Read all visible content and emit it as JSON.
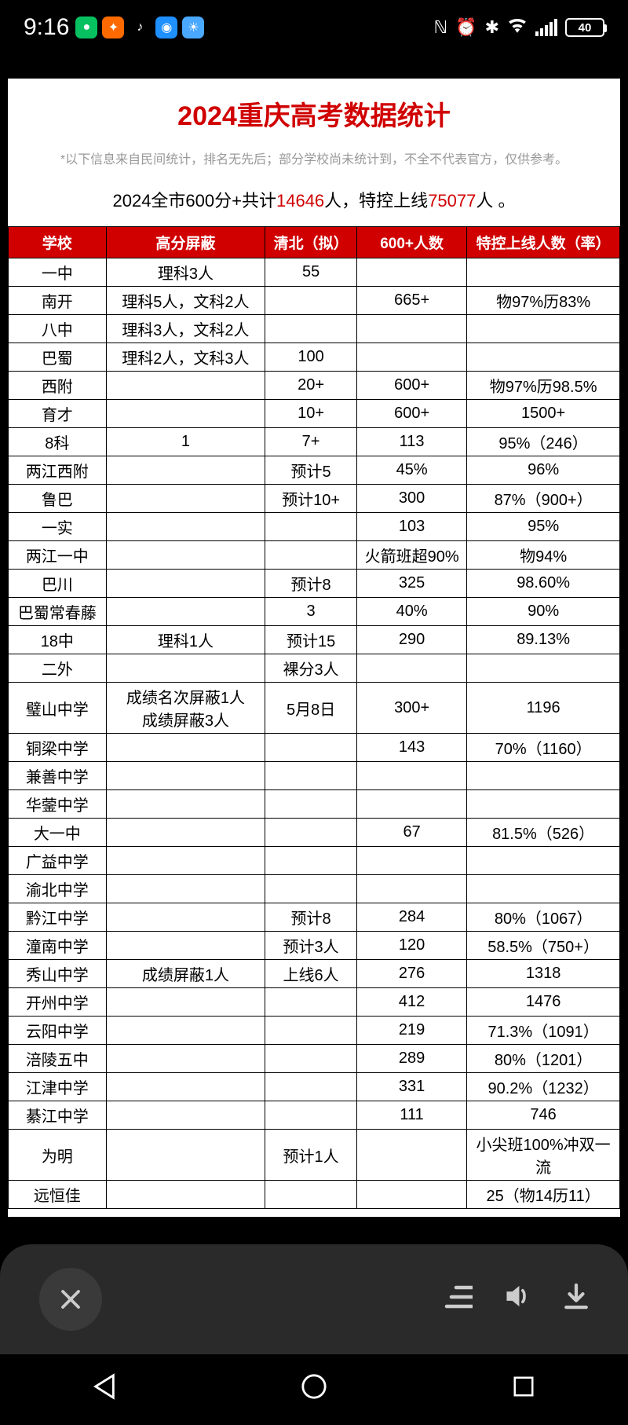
{
  "status": {
    "time": "9:16",
    "battery": "40",
    "app_icons": [
      {
        "bg": "#07c160",
        "glyph": "●"
      },
      {
        "bg": "#ff6a00",
        "glyph": "✦"
      },
      {
        "bg": "#000000",
        "glyph": "♪"
      },
      {
        "bg": "#1e90ff",
        "glyph": "◉"
      },
      {
        "bg": "#4aa8ff",
        "glyph": "☀"
      }
    ]
  },
  "doc": {
    "title": "2024重庆高考数据统计",
    "note": "*以下信息来自民间统计，排名无先后；部分学校尚未统计到，不全不代表官方，仅供参考。",
    "summary_prefix": "2024全市600分+共计",
    "summary_n1": "14646",
    "summary_mid": "人，特控上线",
    "summary_n2": "75077",
    "summary_suffix": "人 。"
  },
  "table": {
    "header_bg": "#d00000",
    "header_color": "#ffffff",
    "columns": [
      "学校",
      "高分屏蔽",
      "清北（拟）",
      "600+人数",
      "特控上线人数（率）"
    ],
    "rows": [
      [
        "一中",
        "理科3人",
        "55",
        "",
        ""
      ],
      [
        "南开",
        "理科5人，文科2人",
        "",
        "665+",
        "物97%历83%"
      ],
      [
        "八中",
        "理科3人，文科2人",
        "",
        "",
        ""
      ],
      [
        "巴蜀",
        "理科2人，文科3人",
        "100",
        "",
        ""
      ],
      [
        "西附",
        "",
        "20+",
        "600+",
        "物97%历98.5%"
      ],
      [
        "育才",
        "",
        "10+",
        "600+",
        "1500+"
      ],
      [
        "8科",
        "1",
        "7+",
        "113",
        "95%（246）"
      ],
      [
        "两江西附",
        "",
        "预计5",
        "45%",
        "96%"
      ],
      [
        "鲁巴",
        "",
        "预计10+",
        "300",
        "87%（900+）"
      ],
      [
        "一实",
        "",
        "",
        "103",
        "95%"
      ],
      [
        "两江一中",
        "",
        "",
        "火箭班超90%",
        "物94%"
      ],
      [
        "巴川",
        "",
        "预计8",
        "325",
        "98.60%"
      ],
      [
        "巴蜀常春藤",
        "",
        "3",
        "40%",
        "90%"
      ],
      [
        "18中",
        "理科1人",
        "预计15",
        "290",
        "89.13%"
      ],
      [
        "二外",
        "",
        "裸分3人",
        "",
        ""
      ],
      [
        "璧山中学",
        "成绩名次屏蔽1人\n成绩屏蔽3人",
        "5月8日",
        "300+",
        "1196"
      ],
      [
        "铜梁中学",
        "",
        "",
        "143",
        "70%（1160）"
      ],
      [
        "兼善中学",
        "",
        "",
        "",
        ""
      ],
      [
        "华蓥中学",
        "",
        "",
        "",
        ""
      ],
      [
        "大一中",
        "",
        "",
        "67",
        "81.5%（526）"
      ],
      [
        "广益中学",
        "",
        "",
        "",
        ""
      ],
      [
        "渝北中学",
        "",
        "",
        "",
        ""
      ],
      [
        "黔江中学",
        "",
        "预计8",
        "284",
        "80%（1067）"
      ],
      [
        "潼南中学",
        "",
        "预计3人",
        "120",
        "58.5%（750+）"
      ],
      [
        "秀山中学",
        "成绩屏蔽1人",
        "上线6人",
        "276",
        "1318"
      ],
      [
        "开州中学",
        "",
        "",
        "412",
        "1476"
      ],
      [
        "云阳中学",
        "",
        "",
        "219",
        "71.3%（1091）"
      ],
      [
        "涪陵五中",
        "",
        "",
        "289",
        "80%（1201）"
      ],
      [
        "江津中学",
        "",
        "",
        "331",
        "90.2%（1232）"
      ],
      [
        "綦江中学",
        "",
        "",
        "111",
        "746"
      ],
      [
        "为明",
        "",
        "预计1人",
        "",
        "小尖班100%冲双一流"
      ],
      [
        "远恒佳",
        "",
        "",
        "",
        "25（物14历11）"
      ]
    ]
  }
}
